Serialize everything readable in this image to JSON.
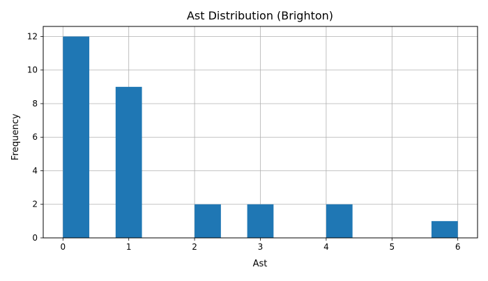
{
  "chart_data": {
    "type": "bar",
    "title": "Ast Distribution (Brighton)",
    "xlabel": "Ast",
    "ylabel": "Frequency",
    "xlim": [
      -0.3,
      6.3
    ],
    "ylim": [
      0,
      12.6
    ],
    "xticks": [
      0,
      1,
      2,
      3,
      4,
      5,
      6
    ],
    "yticks": [
      0,
      2,
      4,
      6,
      8,
      10,
      12
    ],
    "grid": true,
    "bar_color": "#1f77b4",
    "bins": [
      {
        "x0": 0.0,
        "x1": 0.4,
        "count": 12
      },
      {
        "x0": 0.8,
        "x1": 1.2,
        "count": 9
      },
      {
        "x0": 2.0,
        "x1": 2.4,
        "count": 2
      },
      {
        "x0": 2.8,
        "x1": 3.2,
        "count": 2
      },
      {
        "x0": 4.0,
        "x1": 4.4,
        "count": 2
      },
      {
        "x0": 5.6,
        "x1": 6.0,
        "count": 1
      }
    ]
  }
}
